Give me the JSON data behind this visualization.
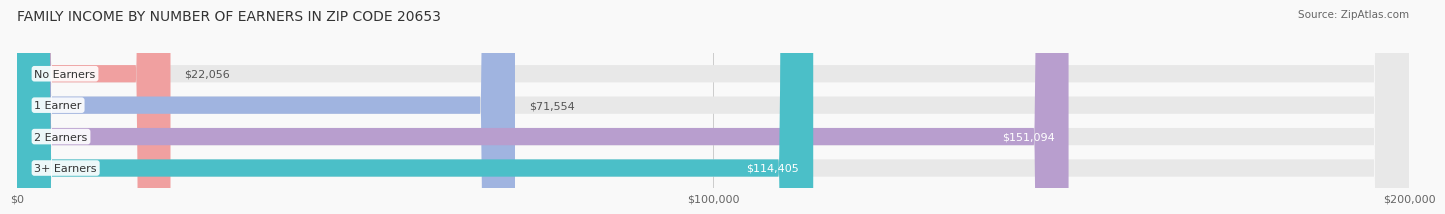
{
  "title": "FAMILY INCOME BY NUMBER OF EARNERS IN ZIP CODE 20653",
  "source": "Source: ZipAtlas.com",
  "categories": [
    "No Earners",
    "1 Earner",
    "2 Earners",
    "3+ Earners"
  ],
  "values": [
    22056,
    71554,
    151094,
    114405
  ],
  "bar_colors": [
    "#f0a0a0",
    "#a0b4e0",
    "#b89ece",
    "#4bbfc8"
  ],
  "bar_bg_color": "#e8e8e8",
  "xlim": [
    0,
    200000
  ],
  "xtick_labels": [
    "$0",
    "$100,000",
    "$200,000"
  ],
  "xtick_values": [
    0,
    100000,
    200000
  ],
  "background_color": "#f9f9f9",
  "title_fontsize": 10,
  "source_fontsize": 7.5,
  "bar_height": 0.55,
  "value_fontsize": 8,
  "cat_fontsize": 8
}
